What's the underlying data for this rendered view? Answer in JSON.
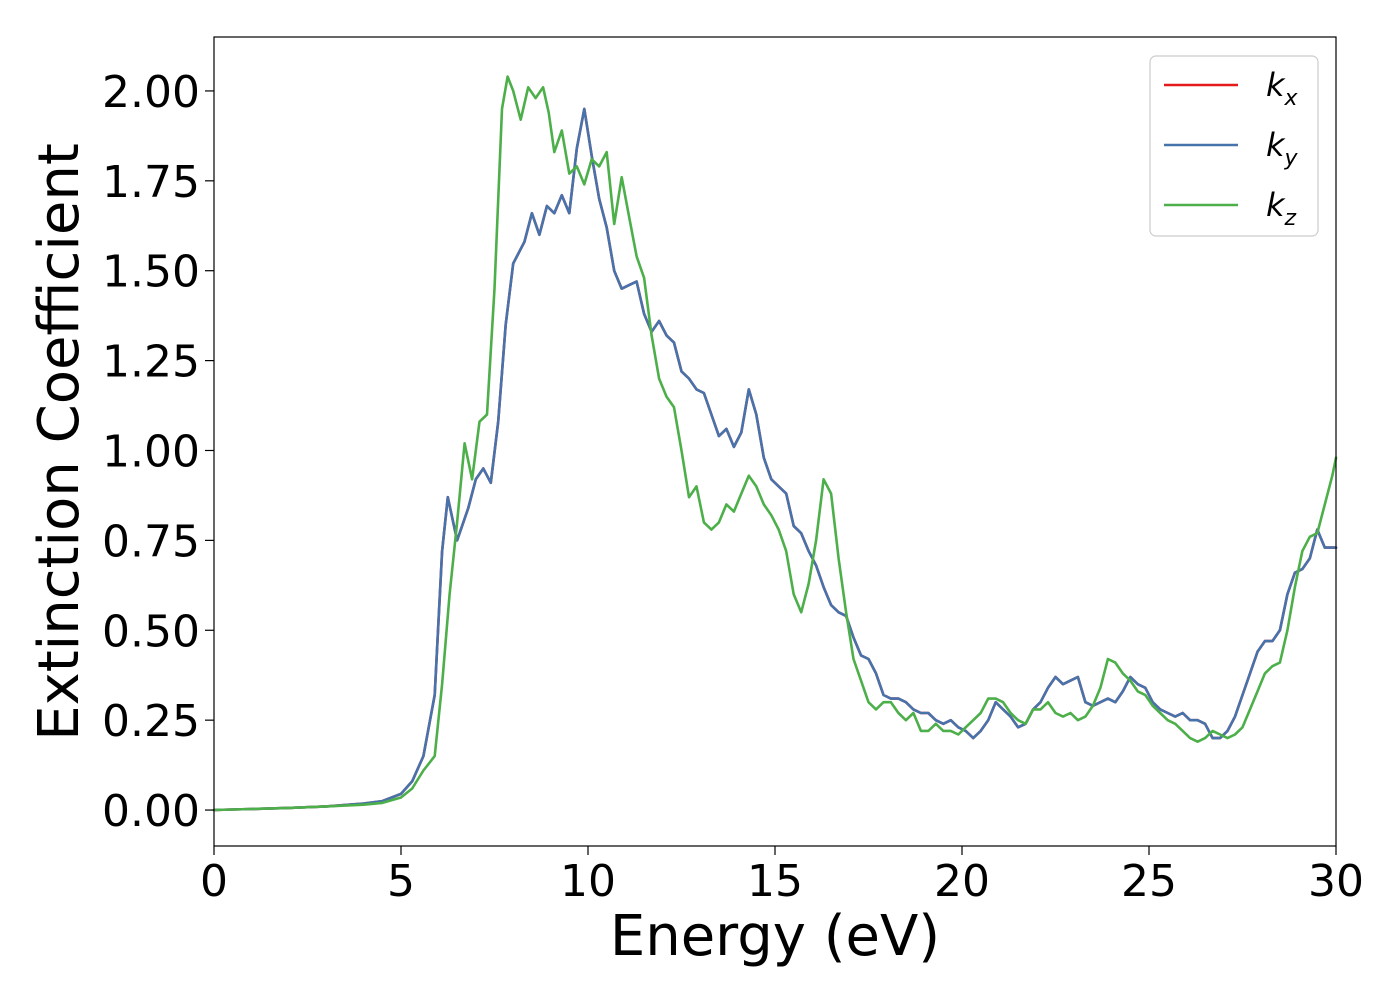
{
  "chart_data": {
    "type": "line",
    "xlabel": "Energy (eV)",
    "ylabel": "Extinction Coefficient",
    "xlim": [
      0,
      30
    ],
    "ylim": [
      -0.1,
      2.15
    ],
    "xticks": [
      0,
      5,
      10,
      15,
      20,
      25,
      30
    ],
    "xtick_labels": [
      "0",
      "5",
      "10",
      "15",
      "20",
      "25",
      "30"
    ],
    "yticks": [
      0.0,
      0.25,
      0.5,
      0.75,
      1.0,
      1.25,
      1.5,
      1.75,
      2.0
    ],
    "ytick_labels": [
      "0.00",
      "0.25",
      "0.50",
      "0.75",
      "1.00",
      "1.25",
      "1.50",
      "1.75",
      "2.00"
    ],
    "grid": false,
    "legend_position": "top-right",
    "series": [
      {
        "name": "k",
        "subscript": "x",
        "color": "#e41a1c",
        "x": [
          0,
          1,
          2,
          3,
          4,
          4.5,
          5,
          5.3,
          5.6,
          5.9,
          6.1,
          6.25,
          6.5,
          6.8,
          7.0,
          7.2,
          7.4,
          7.6,
          7.8,
          8.0,
          8.3,
          8.5,
          8.7,
          8.9,
          9.1,
          9.3,
          9.5,
          9.7,
          9.9,
          10.1,
          10.3,
          10.5,
          10.7,
          10.9,
          11.1,
          11.3,
          11.5,
          11.7,
          11.9,
          12.1,
          12.3,
          12.5,
          12.7,
          12.9,
          13.1,
          13.3,
          13.5,
          13.7,
          13.9,
          14.1,
          14.3,
          14.5,
          14.7,
          14.9,
          15.1,
          15.3,
          15.5,
          15.7,
          15.9,
          16.1,
          16.3,
          16.5,
          16.7,
          16.9,
          17.1,
          17.3,
          17.5,
          17.7,
          17.9,
          18.1,
          18.3,
          18.5,
          18.7,
          18.9,
          19.1,
          19.3,
          19.5,
          19.7,
          19.9,
          20.1,
          20.3,
          20.5,
          20.7,
          20.9,
          21.1,
          21.3,
          21.5,
          21.7,
          21.9,
          22.1,
          22.3,
          22.5,
          22.7,
          22.9,
          23.1,
          23.3,
          23.5,
          23.7,
          23.9,
          24.1,
          24.3,
          24.5,
          24.7,
          24.9,
          25.1,
          25.3,
          25.5,
          25.7,
          25.9,
          26.1,
          26.3,
          26.5,
          26.7,
          26.9,
          27.1,
          27.3,
          27.5,
          27.7,
          27.9,
          28.1,
          28.3,
          28.5,
          28.7,
          28.9,
          29.1,
          29.3,
          29.5,
          29.7,
          29.9,
          30
        ],
        "y": [
          0.0,
          0.003,
          0.006,
          0.01,
          0.018,
          0.025,
          0.045,
          0.08,
          0.15,
          0.32,
          0.72,
          0.87,
          0.75,
          0.84,
          0.92,
          0.95,
          0.91,
          1.08,
          1.35,
          1.52,
          1.58,
          1.66,
          1.6,
          1.68,
          1.66,
          1.71,
          1.66,
          1.84,
          1.95,
          1.82,
          1.7,
          1.62,
          1.5,
          1.45,
          1.46,
          1.47,
          1.38,
          1.33,
          1.36,
          1.32,
          1.3,
          1.22,
          1.2,
          1.17,
          1.16,
          1.1,
          1.04,
          1.06,
          1.01,
          1.05,
          1.17,
          1.1,
          0.98,
          0.92,
          0.9,
          0.88,
          0.79,
          0.77,
          0.72,
          0.68,
          0.62,
          0.57,
          0.55,
          0.54,
          0.48,
          0.43,
          0.42,
          0.38,
          0.32,
          0.31,
          0.31,
          0.3,
          0.28,
          0.27,
          0.27,
          0.25,
          0.24,
          0.25,
          0.23,
          0.22,
          0.2,
          0.22,
          0.25,
          0.3,
          0.28,
          0.26,
          0.23,
          0.24,
          0.28,
          0.3,
          0.34,
          0.37,
          0.35,
          0.36,
          0.37,
          0.3,
          0.29,
          0.3,
          0.31,
          0.3,
          0.33,
          0.37,
          0.35,
          0.34,
          0.3,
          0.28,
          0.27,
          0.26,
          0.27,
          0.25,
          0.25,
          0.24,
          0.2,
          0.2,
          0.22,
          0.26,
          0.32,
          0.38,
          0.44,
          0.47,
          0.47,
          0.5,
          0.6,
          0.66,
          0.67,
          0.7,
          0.78,
          0.73,
          0.73,
          0.73
        ]
      },
      {
        "name": "k",
        "subscript": "y",
        "color": "#4673ab",
        "x": [
          0,
          1,
          2,
          3,
          4,
          4.5,
          5,
          5.3,
          5.6,
          5.9,
          6.1,
          6.25,
          6.5,
          6.8,
          7.0,
          7.2,
          7.4,
          7.6,
          7.8,
          8.0,
          8.3,
          8.5,
          8.7,
          8.9,
          9.1,
          9.3,
          9.5,
          9.7,
          9.9,
          10.1,
          10.3,
          10.5,
          10.7,
          10.9,
          11.1,
          11.3,
          11.5,
          11.7,
          11.9,
          12.1,
          12.3,
          12.5,
          12.7,
          12.9,
          13.1,
          13.3,
          13.5,
          13.7,
          13.9,
          14.1,
          14.3,
          14.5,
          14.7,
          14.9,
          15.1,
          15.3,
          15.5,
          15.7,
          15.9,
          16.1,
          16.3,
          16.5,
          16.7,
          16.9,
          17.1,
          17.3,
          17.5,
          17.7,
          17.9,
          18.1,
          18.3,
          18.5,
          18.7,
          18.9,
          19.1,
          19.3,
          19.5,
          19.7,
          19.9,
          20.1,
          20.3,
          20.5,
          20.7,
          20.9,
          21.1,
          21.3,
          21.5,
          21.7,
          21.9,
          22.1,
          22.3,
          22.5,
          22.7,
          22.9,
          23.1,
          23.3,
          23.5,
          23.7,
          23.9,
          24.1,
          24.3,
          24.5,
          24.7,
          24.9,
          25.1,
          25.3,
          25.5,
          25.7,
          25.9,
          26.1,
          26.3,
          26.5,
          26.7,
          26.9,
          27.1,
          27.3,
          27.5,
          27.7,
          27.9,
          28.1,
          28.3,
          28.5,
          28.7,
          28.9,
          29.1,
          29.3,
          29.5,
          29.7,
          29.9,
          30
        ],
        "y": [
          0.0,
          0.003,
          0.006,
          0.01,
          0.018,
          0.025,
          0.045,
          0.08,
          0.15,
          0.32,
          0.72,
          0.87,
          0.75,
          0.84,
          0.92,
          0.95,
          0.91,
          1.08,
          1.35,
          1.52,
          1.58,
          1.66,
          1.6,
          1.68,
          1.66,
          1.71,
          1.66,
          1.84,
          1.95,
          1.82,
          1.7,
          1.62,
          1.5,
          1.45,
          1.46,
          1.47,
          1.38,
          1.33,
          1.36,
          1.32,
          1.3,
          1.22,
          1.2,
          1.17,
          1.16,
          1.1,
          1.04,
          1.06,
          1.01,
          1.05,
          1.17,
          1.1,
          0.98,
          0.92,
          0.9,
          0.88,
          0.79,
          0.77,
          0.72,
          0.68,
          0.62,
          0.57,
          0.55,
          0.54,
          0.48,
          0.43,
          0.42,
          0.38,
          0.32,
          0.31,
          0.31,
          0.3,
          0.28,
          0.27,
          0.27,
          0.25,
          0.24,
          0.25,
          0.23,
          0.22,
          0.2,
          0.22,
          0.25,
          0.3,
          0.28,
          0.26,
          0.23,
          0.24,
          0.28,
          0.3,
          0.34,
          0.37,
          0.35,
          0.36,
          0.37,
          0.3,
          0.29,
          0.3,
          0.31,
          0.3,
          0.33,
          0.37,
          0.35,
          0.34,
          0.3,
          0.28,
          0.27,
          0.26,
          0.27,
          0.25,
          0.25,
          0.24,
          0.2,
          0.2,
          0.22,
          0.26,
          0.32,
          0.38,
          0.44,
          0.47,
          0.47,
          0.5,
          0.6,
          0.66,
          0.67,
          0.7,
          0.78,
          0.73,
          0.73,
          0.73
        ]
      },
      {
        "name": "k",
        "subscript": "z",
        "color": "#4daf4a",
        "x": [
          0,
          1,
          2,
          3,
          4,
          4.5,
          5,
          5.3,
          5.6,
          5.9,
          6.1,
          6.3,
          6.5,
          6.7,
          6.9,
          7.1,
          7.3,
          7.5,
          7.7,
          7.85,
          8.0,
          8.2,
          8.4,
          8.6,
          8.8,
          8.95,
          9.1,
          9.3,
          9.5,
          9.7,
          9.9,
          10.1,
          10.3,
          10.5,
          10.7,
          10.9,
          11.1,
          11.3,
          11.5,
          11.7,
          11.9,
          12.1,
          12.3,
          12.5,
          12.7,
          12.9,
          13.1,
          13.3,
          13.5,
          13.7,
          13.9,
          14.1,
          14.3,
          14.5,
          14.7,
          14.9,
          15.1,
          15.3,
          15.5,
          15.7,
          15.9,
          16.1,
          16.3,
          16.5,
          16.7,
          16.9,
          17.1,
          17.3,
          17.5,
          17.7,
          17.9,
          18.1,
          18.3,
          18.5,
          18.7,
          18.9,
          19.1,
          19.3,
          19.5,
          19.7,
          19.9,
          20.1,
          20.3,
          20.5,
          20.7,
          20.9,
          21.1,
          21.3,
          21.5,
          21.7,
          21.9,
          22.1,
          22.3,
          22.5,
          22.7,
          22.9,
          23.1,
          23.3,
          23.5,
          23.7,
          23.9,
          24.1,
          24.3,
          24.5,
          24.7,
          24.9,
          25.1,
          25.3,
          25.5,
          25.7,
          25.9,
          26.1,
          26.3,
          26.5,
          26.7,
          26.9,
          27.1,
          27.3,
          27.5,
          27.7,
          27.9,
          28.1,
          28.3,
          28.5,
          28.7,
          28.9,
          29.1,
          29.3,
          29.5,
          29.7,
          29.9,
          30
        ],
        "y": [
          0.0,
          0.003,
          0.006,
          0.01,
          0.015,
          0.02,
          0.035,
          0.06,
          0.11,
          0.15,
          0.35,
          0.6,
          0.8,
          1.02,
          0.92,
          1.08,
          1.1,
          1.45,
          1.95,
          2.04,
          2.0,
          1.92,
          2.01,
          1.98,
          2.01,
          1.94,
          1.83,
          1.89,
          1.77,
          1.79,
          1.74,
          1.81,
          1.79,
          1.83,
          1.63,
          1.76,
          1.65,
          1.54,
          1.48,
          1.32,
          1.2,
          1.15,
          1.12,
          1.0,
          0.87,
          0.9,
          0.8,
          0.78,
          0.8,
          0.85,
          0.83,
          0.88,
          0.93,
          0.9,
          0.85,
          0.82,
          0.78,
          0.72,
          0.6,
          0.55,
          0.63,
          0.75,
          0.92,
          0.88,
          0.7,
          0.55,
          0.42,
          0.36,
          0.3,
          0.28,
          0.3,
          0.3,
          0.27,
          0.25,
          0.27,
          0.22,
          0.22,
          0.24,
          0.22,
          0.22,
          0.21,
          0.23,
          0.25,
          0.27,
          0.31,
          0.31,
          0.3,
          0.27,
          0.25,
          0.24,
          0.28,
          0.28,
          0.3,
          0.27,
          0.26,
          0.27,
          0.25,
          0.26,
          0.29,
          0.34,
          0.42,
          0.41,
          0.38,
          0.36,
          0.33,
          0.32,
          0.29,
          0.27,
          0.25,
          0.24,
          0.22,
          0.2,
          0.19,
          0.2,
          0.22,
          0.21,
          0.2,
          0.21,
          0.23,
          0.28,
          0.33,
          0.38,
          0.4,
          0.41,
          0.5,
          0.62,
          0.72,
          0.76,
          0.77,
          0.85,
          0.93,
          0.98
        ]
      }
    ]
  }
}
